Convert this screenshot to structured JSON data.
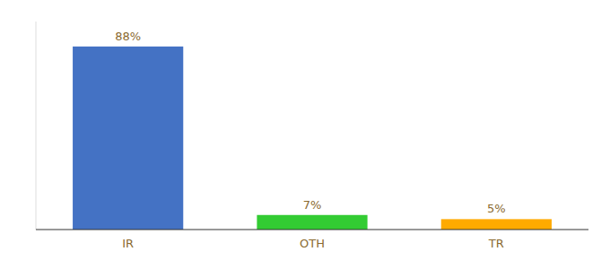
{
  "chart_data": {
    "type": "bar",
    "categories": [
      "IR",
      "OTH",
      "TR"
    ],
    "values": [
      88,
      7,
      5
    ],
    "value_labels": [
      "88%",
      "7%",
      "5%"
    ],
    "colors": [
      "#4472c4",
      "#33cc33",
      "#ffaa00"
    ],
    "ylim": [
      0,
      100
    ],
    "data_labels": true,
    "tick_labels": "x",
    "grid": false
  }
}
